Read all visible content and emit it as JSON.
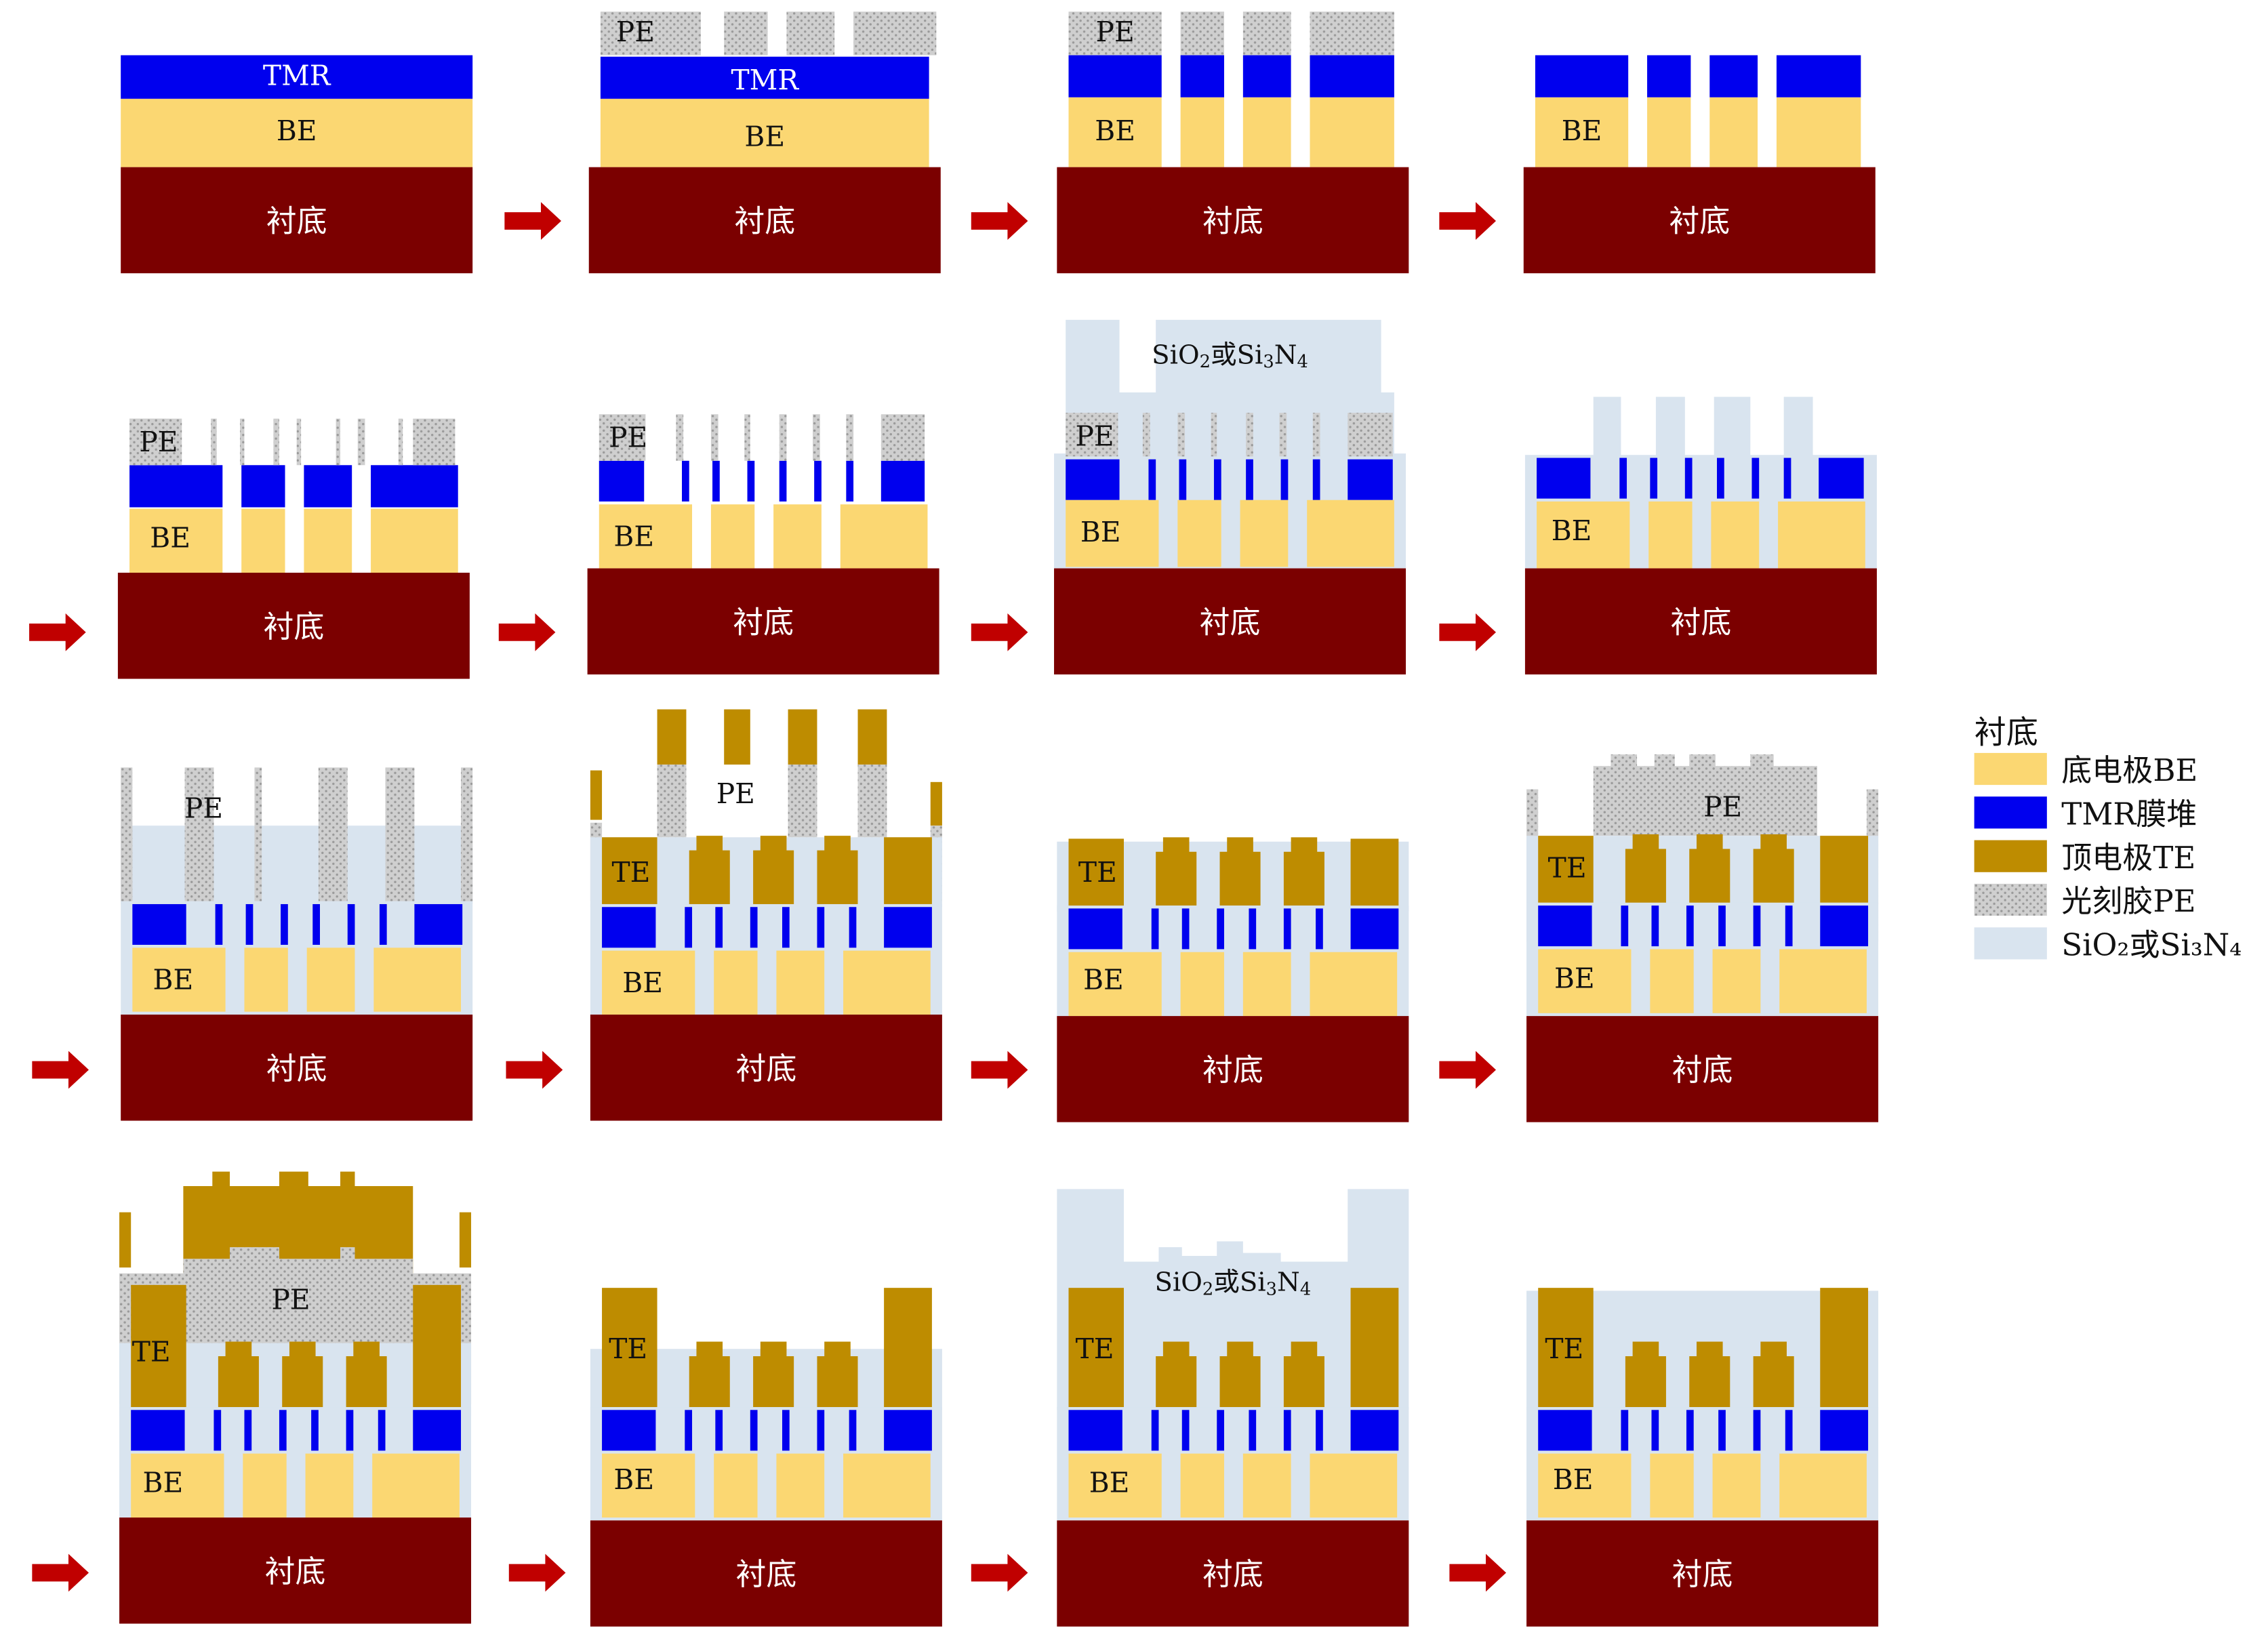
{
  "colors": {
    "substrate": "#7b0000",
    "be": "#fbd772",
    "tmr": "#0000ee",
    "te": "#be8c00",
    "pe": "#cfcfcf",
    "pe_dot": "#9a9a9a",
    "oxide": "#d9e4ef",
    "arrow": "#c00000",
    "substrate_text": "#ffffff",
    "label_text": "#111111"
  },
  "labels": {
    "substrate": "衬底",
    "be": "BE",
    "tmr": "TMR",
    "te": "TE",
    "pe": "PE",
    "oxide_prefix": "SiO",
    "oxide_sub1": "2",
    "oxide_mid": "或Si",
    "oxide_sub2": "3",
    "oxide_n": "N",
    "oxide_sub3": "4"
  },
  "legend": {
    "title": "衬底",
    "items": [
      {
        "key": "be",
        "label": "底电极BE"
      },
      {
        "key": "tmr",
        "label": "TMR膜堆"
      },
      {
        "key": "te",
        "label": "顶电极TE"
      },
      {
        "key": "pe",
        "label": "光刻胶PE"
      },
      {
        "key": "oxide",
        "label": "SiO₂或Si₃N₄"
      }
    ]
  },
  "steps": [
    {
      "step": 1,
      "layers": [
        "substrate",
        "be",
        "tmr"
      ],
      "texts": [
        "tmr",
        "be",
        "substrate"
      ]
    },
    {
      "step": 2,
      "layers": [
        "substrate",
        "be",
        "tmr",
        "pe"
      ],
      "texts": [
        "pe",
        "tmr",
        "be",
        "substrate"
      ]
    },
    {
      "step": 3,
      "layers": [
        "substrate",
        "be",
        "tmr",
        "pe"
      ],
      "texts": [
        "pe",
        "be",
        "substrate"
      ]
    },
    {
      "step": 4,
      "layers": [
        "substrate",
        "be",
        "tmr"
      ],
      "texts": [
        "be",
        "substrate"
      ]
    },
    {
      "step": 5,
      "layers": [
        "substrate",
        "be",
        "tmr",
        "pe"
      ],
      "texts": [
        "pe",
        "be",
        "substrate"
      ]
    },
    {
      "step": 6,
      "layers": [
        "substrate",
        "be",
        "tmr",
        "pe"
      ],
      "texts": [
        "pe",
        "be",
        "substrate"
      ]
    },
    {
      "step": 7,
      "layers": [
        "substrate",
        "be",
        "tmr",
        "pe",
        "oxide"
      ],
      "texts": [
        "oxide",
        "pe",
        "be",
        "substrate"
      ]
    },
    {
      "step": 8,
      "layers": [
        "substrate",
        "be",
        "tmr",
        "oxide"
      ],
      "texts": [
        "be",
        "substrate"
      ]
    },
    {
      "step": 9,
      "layers": [
        "substrate",
        "be",
        "tmr",
        "oxide",
        "pe"
      ],
      "texts": [
        "pe",
        "be",
        "substrate"
      ]
    },
    {
      "step": 10,
      "layers": [
        "substrate",
        "be",
        "tmr",
        "oxide",
        "pe",
        "te"
      ],
      "texts": [
        "pe",
        "te",
        "be",
        "substrate"
      ]
    },
    {
      "step": 11,
      "layers": [
        "substrate",
        "be",
        "tmr",
        "oxide",
        "te"
      ],
      "texts": [
        "te",
        "be",
        "substrate"
      ]
    },
    {
      "step": 12,
      "layers": [
        "substrate",
        "be",
        "tmr",
        "oxide",
        "te",
        "pe"
      ],
      "texts": [
        "pe",
        "te",
        "be",
        "substrate"
      ]
    },
    {
      "step": 13,
      "layers": [
        "substrate",
        "be",
        "tmr",
        "oxide",
        "te",
        "pe"
      ],
      "texts": [
        "pe",
        "te",
        "be",
        "substrate"
      ]
    },
    {
      "step": 14,
      "layers": [
        "substrate",
        "be",
        "tmr",
        "oxide",
        "te"
      ],
      "texts": [
        "te",
        "be",
        "substrate"
      ]
    },
    {
      "step": 15,
      "layers": [
        "substrate",
        "be",
        "tmr",
        "oxide",
        "te"
      ],
      "texts": [
        "oxide",
        "te",
        "be",
        "substrate"
      ]
    },
    {
      "step": 16,
      "layers": [
        "substrate",
        "be",
        "tmr",
        "oxide",
        "te"
      ],
      "texts": [
        "te",
        "be",
        "substrate"
      ]
    }
  ]
}
